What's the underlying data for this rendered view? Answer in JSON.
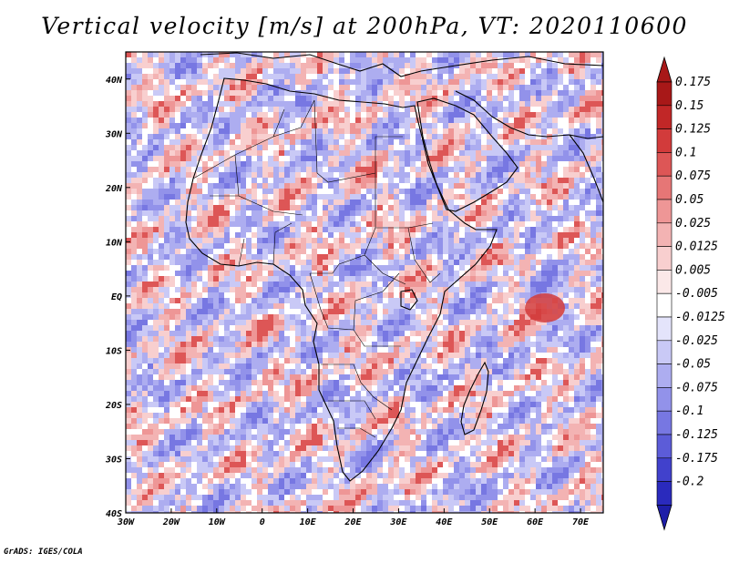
{
  "title": "Vertical velocity [m/s] at 200hPa, VT: 2020110600",
  "credit": "GrADS: IGES/COLA",
  "map": {
    "lon_labels": [
      "30W",
      "20W",
      "10W",
      "0",
      "10E",
      "20E",
      "30E",
      "40E",
      "50E",
      "60E",
      "70E"
    ],
    "lat_labels": [
      "40N",
      "30N",
      "20N",
      "10N",
      "EQ",
      "10S",
      "20S",
      "30S",
      "40S"
    ],
    "lon_range": [
      -30,
      75
    ],
    "lat_range": [
      -40,
      45
    ]
  },
  "colorbar": {
    "levels": [
      {
        "label": "0.175",
        "color": "#a81818"
      },
      {
        "label": "0.15",
        "color": "#c12727"
      },
      {
        "label": "0.125",
        "color": "#d23b3b"
      },
      {
        "label": "0.1",
        "color": "#dd5656"
      },
      {
        "label": "0.075",
        "color": "#e67676"
      },
      {
        "label": "0.05",
        "color": "#ee9696"
      },
      {
        "label": "0.025",
        "color": "#f3b3b3"
      },
      {
        "label": "0.0125",
        "color": "#f8cfcf"
      },
      {
        "label": "0.005",
        "color": "#fbe8e8"
      },
      {
        "label": "-0.005",
        "color": "#ffffff"
      },
      {
        "label": "-0.0125",
        "color": "#e4e4fb"
      },
      {
        "label": "-0.025",
        "color": "#c9c9f6"
      },
      {
        "label": "-0.05",
        "color": "#adadf0"
      },
      {
        "label": "-0.075",
        "color": "#9292ea"
      },
      {
        "label": "-0.1",
        "color": "#7777e2"
      },
      {
        "label": "-0.125",
        "color": "#5c5cd8"
      },
      {
        "label": "-0.175",
        "color": "#4141cc"
      },
      {
        "label": "-0.2",
        "color": "#2a2abd"
      }
    ],
    "top_cap_color": "#a81818",
    "bottom_cap_color": "#1e1ea8"
  }
}
